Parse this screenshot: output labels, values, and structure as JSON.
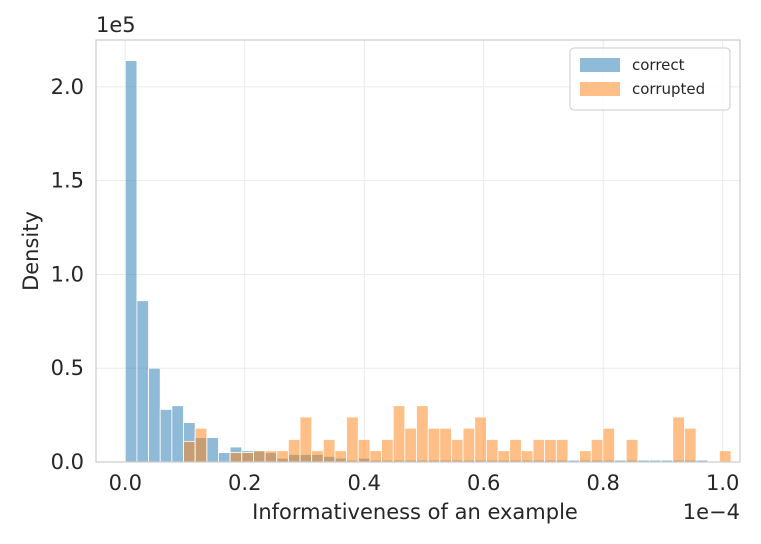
{
  "chart_data": {
    "type": "histogram",
    "title": "",
    "xlabel": "Informativeness of an example",
    "ylabel": "Density",
    "x_offset_text": "1e−4",
    "y_offset_text": "1e5",
    "xlim": [
      -0.049,
      1.029
    ],
    "ylim": [
      0,
      2.25
    ],
    "grid": true,
    "legend_position": "top-right",
    "x_ticks": [
      0.0,
      0.2,
      0.4,
      0.6,
      0.8,
      1.0
    ],
    "x_tick_labels": [
      "0.0",
      "0.2",
      "0.4",
      "0.6",
      "0.8",
      "1.0"
    ],
    "y_ticks": [
      0.0,
      0.5,
      1.0,
      1.5,
      2.0
    ],
    "y_tick_labels": [
      "0.0",
      "0.5",
      "1.0",
      "1.5",
      "2.0"
    ],
    "colors": {
      "correct": "#1f77b4",
      "corrupted": "#ff7f0e",
      "frame": "#cccccc",
      "grid": "#ebebeb",
      "text": "#262626"
    },
    "series": [
      {
        "name": "correct",
        "bin_start": 0.0,
        "bin_width": 0.0195,
        "values": [
          2.14,
          0.86,
          0.5,
          0.28,
          0.3,
          0.21,
          0.13,
          0.13,
          0.05,
          0.08,
          0.06,
          0.06,
          0.05,
          0.02,
          0.04,
          0.04,
          0.04,
          0.03,
          0.02,
          0.01,
          0.02,
          0.01,
          0.01,
          0.01,
          0.01,
          0.01,
          0.01,
          0.01,
          0.01,
          0.01,
          0.01,
          0.01,
          0.01,
          0.01,
          0.01,
          0.01,
          0.01,
          0.01,
          0.01,
          0.01,
          0.01,
          0.01,
          0.01,
          0.01,
          0.01,
          0.01,
          0.01,
          0.01,
          0.01,
          0.01
        ]
      },
      {
        "name": "corrupted",
        "bin_start": 0.0,
        "bin_width": 0.0195,
        "values": [
          0,
          0,
          0,
          0,
          0,
          0.11,
          0.18,
          0,
          0,
          0.05,
          0.05,
          0.06,
          0.06,
          0.06,
          0.12,
          0.24,
          0.06,
          0.12,
          0.06,
          0.24,
          0.12,
          0.06,
          0.12,
          0.3,
          0.18,
          0.3,
          0.18,
          0.18,
          0.12,
          0.18,
          0.24,
          0.12,
          0.06,
          0.12,
          0.06,
          0.12,
          0.12,
          0.12,
          0,
          0.06,
          0.12,
          0.18,
          0,
          0.12,
          0,
          0,
          0,
          0.24,
          0.18,
          0,
          0,
          0.06
        ]
      }
    ]
  }
}
